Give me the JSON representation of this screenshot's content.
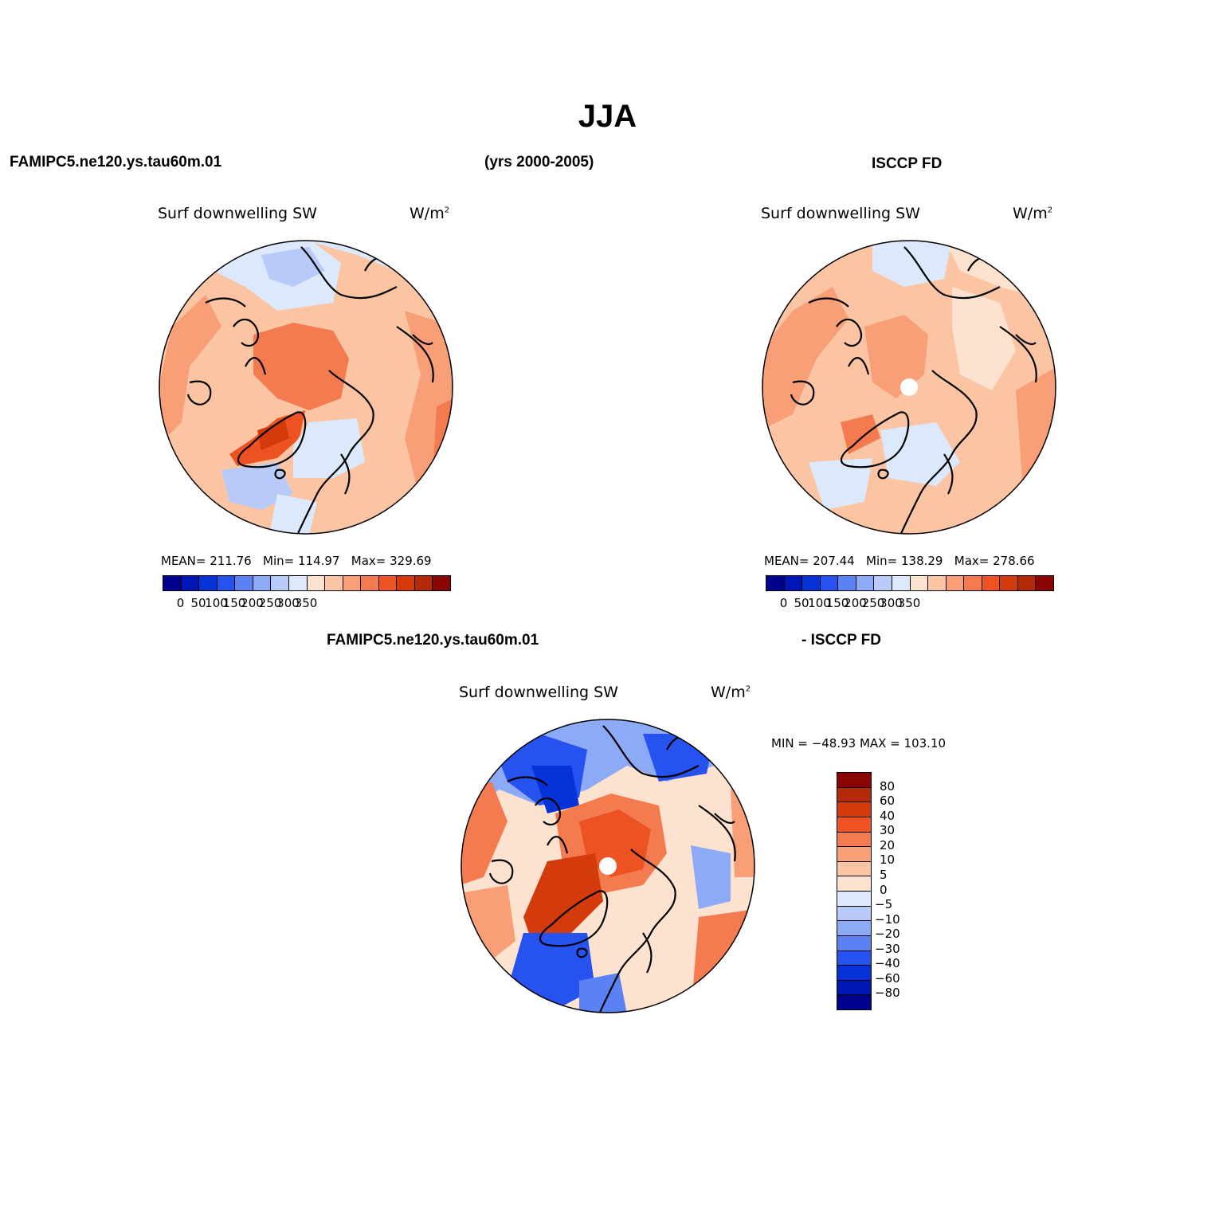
{
  "figure": {
    "title": "JJA",
    "left_header": "FAMIPC5.ne120.ys.tau60m.01",
    "center_header": "(yrs 2000-2005)",
    "right_header": "ISCCP FD",
    "diff_header_left": "FAMIPC5.ne120.ys.tau60m.01",
    "diff_header_right": "- ISCCP FD"
  },
  "panels": {
    "model": {
      "variable": "Surf downwelling SW",
      "units_base": "W/m",
      "units_exp": "2",
      "stats": "MEAN= 211.76   Min= 114.97   Max= 329.69",
      "mean": 211.76,
      "min": 114.97,
      "max": 329.69
    },
    "obs": {
      "variable": "Surf downwelling SW",
      "units_base": "W/m",
      "units_exp": "2",
      "stats": "MEAN= 207.44   Min= 138.29   Max= 278.66",
      "mean": 207.44,
      "min": 138.29,
      "max": 278.66
    },
    "diff": {
      "variable": "Surf downwelling SW",
      "units_base": "W/m",
      "units_exp": "2",
      "stats": "MIN = −48.93 MAX = 103.10",
      "min": -48.93,
      "max": 103.1
    }
  },
  "colorbars": {
    "field": {
      "tick_labels": [
        "0",
        "50",
        "100",
        "150",
        "200",
        "250",
        "300",
        "350"
      ],
      "colors": [
        "#00008f",
        "#0016b5",
        "#0632d8",
        "#2652f0",
        "#5a82f4",
        "#8caaf6",
        "#b8cbf8",
        "#dce8fb",
        "#fde3cf",
        "#fbc4a2",
        "#f89f78",
        "#f47b50",
        "#ed5222",
        "#d33a0c",
        "#b22a08",
        "#880504"
      ]
    },
    "diff": {
      "tick_labels": [
        "80",
        "60",
        "40",
        "30",
        "20",
        "10",
        "5",
        "0",
        "−5",
        "−10",
        "−20",
        "−30",
        "−40",
        "−60",
        "−80"
      ],
      "colors": [
        "#880504",
        "#b22a08",
        "#d33a0c",
        "#ed5222",
        "#f47b50",
        "#f89f78",
        "#fbc4a2",
        "#fde3cf",
        "#dce8fb",
        "#b8cbf8",
        "#8caaf6",
        "#5a82f4",
        "#2652f0",
        "#0632d8",
        "#0016b5",
        "#00008f"
      ]
    }
  }
}
